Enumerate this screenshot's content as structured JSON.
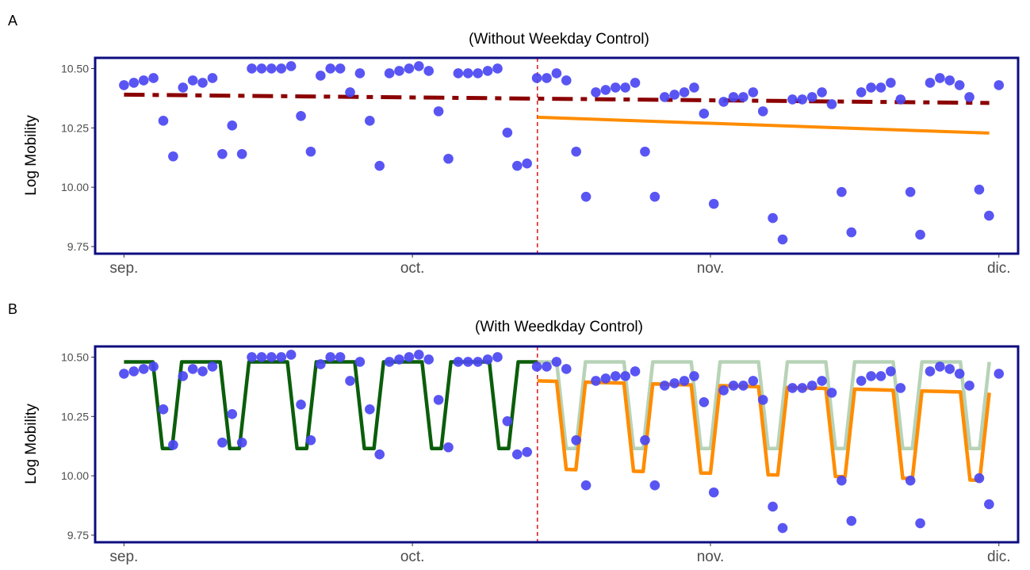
{
  "colors": {
    "points": "#4b47f2",
    "frame": "#0d0d80",
    "trend_pre_a": "#8b0000",
    "fit_post": "#ff8c00",
    "fit_pre_b": "#0b5e0b",
    "counterfactual_b": "#b7d3b7",
    "intervention": "#e02020"
  },
  "chart_data": [
    {
      "type": "scatter",
      "panel_label": "A",
      "title": "(Without Weekday Control)",
      "xlabel": "",
      "ylabel": "Log Mobility",
      "x_ticks": [
        {
          "date": "2020-09-01",
          "label": "sep."
        },
        {
          "date": "2020-10-01",
          "label": "oct."
        },
        {
          "date": "2020-11-01",
          "label": "nov."
        },
        {
          "date": "2020-12-01",
          "label": "dic."
        }
      ],
      "y_ticks": [
        "9.75",
        "10.00",
        "10.25",
        "10.50"
      ],
      "xlim": [
        "2020-08-29",
        "2020-12-03"
      ],
      "ylim": [
        9.72,
        10.545
      ],
      "intervention_date": "2020-10-14",
      "series": [
        {
          "kind": "points",
          "dates": [
            "2020-09-01",
            "2020-12-01"
          ],
          "values": [
            10.43,
            10.44,
            10.45,
            10.46,
            10.28,
            10.13,
            10.42,
            10.45,
            10.44,
            10.46,
            10.14,
            10.26,
            10.14,
            10.5,
            10.5,
            10.5,
            10.5,
            10.51,
            10.3,
            10.15,
            10.47,
            10.5,
            10.5,
            10.4,
            10.48,
            10.28,
            10.09,
            10.48,
            10.49,
            10.5,
            10.51,
            10.49,
            10.32,
            10.12,
            10.48,
            10.48,
            10.48,
            10.49,
            10.5,
            10.23,
            10.09,
            10.1,
            10.46,
            10.46,
            10.48,
            10.45,
            10.15,
            9.96,
            10.4,
            10.41,
            10.42,
            10.42,
            10.44,
            10.15,
            9.96,
            10.38,
            10.39,
            10.4,
            10.42,
            10.31,
            9.93,
            10.36,
            10.38,
            10.38,
            10.4,
            10.32,
            9.87,
            9.78,
            10.37,
            10.37,
            10.38,
            10.4,
            10.35,
            9.98,
            9.81,
            10.4,
            10.42,
            10.42,
            10.44,
            10.37,
            9.98,
            9.8,
            10.44,
            10.46,
            10.45,
            10.43,
            10.38,
            9.99,
            9.88,
            10.43
          ]
        },
        {
          "kind": "trend_pre",
          "style": "dashed",
          "dates": [
            "2020-09-01",
            "2020-11-30"
          ],
          "values": [
            10.39,
            10.355
          ]
        },
        {
          "kind": "fit_post",
          "style": "solid",
          "dates": [
            "2020-10-14",
            "2020-11-30"
          ],
          "values": [
            10.295,
            10.228
          ]
        }
      ]
    },
    {
      "type": "scatter",
      "panel_label": "B",
      "title": "(With Weedkday Control)",
      "xlabel": "",
      "ylabel": "Log Mobility",
      "x_ticks": [
        {
          "date": "2020-09-01",
          "label": "sep."
        },
        {
          "date": "2020-10-01",
          "label": "oct."
        },
        {
          "date": "2020-11-01",
          "label": "nov."
        },
        {
          "date": "2020-12-01",
          "label": "dic."
        }
      ],
      "y_ticks": [
        "9.75",
        "10.00",
        "10.25",
        "10.50"
      ],
      "xlim": [
        "2020-08-29",
        "2020-12-03"
      ],
      "ylim": [
        9.72,
        10.545
      ],
      "intervention_date": "2020-10-14",
      "weekday_level": 10.48,
      "weekend_level": 10.115,
      "post_weekday_level": [
        10.4,
        10.35
      ],
      "post_weekend_level": [
        10.03,
        9.98
      ]
    }
  ]
}
